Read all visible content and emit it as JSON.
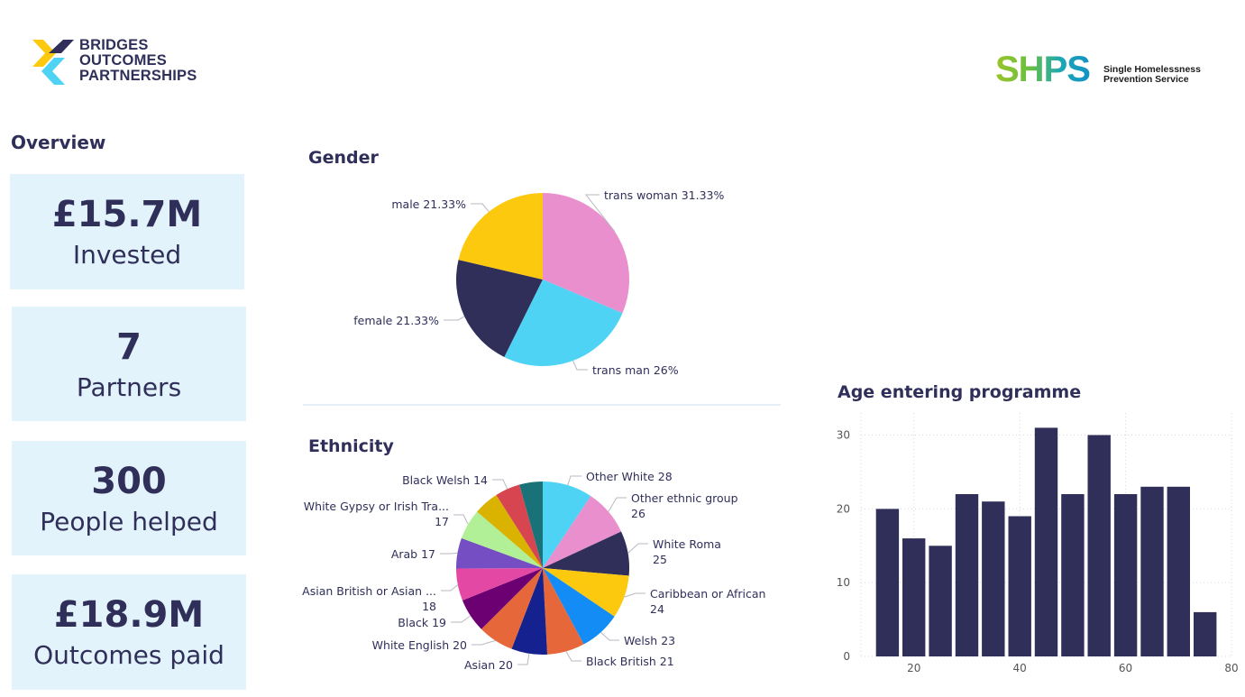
{
  "logos": {
    "bridges": [
      "BRIDGES",
      "OUTCOMES",
      "PARTNERSHIPS"
    ],
    "shps_mark": "SHPS",
    "shps_sub": [
      "Single Homelessness",
      "Prevention Service"
    ]
  },
  "overview": {
    "title": "Overview",
    "cards": [
      {
        "value": "£15.7M",
        "label": "Invested"
      },
      {
        "value": "7",
        "label": "Partners"
      },
      {
        "value": "300",
        "label": "People helped"
      },
      {
        "value": "£18.9M",
        "label": "Outcomes paid"
      }
    ]
  },
  "colors": {
    "navy": "#2f2f5a",
    "card_bg": "#e2f3fb"
  },
  "chart_data": [
    {
      "type": "pie",
      "title": "Gender",
      "slices": [
        {
          "label": "trans woman",
          "value": 31.33,
          "display": "trans woman 31.33%",
          "color": "#ea8fce"
        },
        {
          "label": "trans man",
          "value": 26,
          "display": "trans man 26%",
          "color": "#4fd3f5"
        },
        {
          "label": "female",
          "value": 21.33,
          "display": "female 21.33%",
          "color": "#2f2f5a"
        },
        {
          "label": "male",
          "value": 21.33,
          "display": "male 21.33%",
          "color": "#fdc90f"
        }
      ]
    },
    {
      "type": "pie",
      "title": "Ethnicity",
      "slices": [
        {
          "label": "Other White",
          "value": 28,
          "display": [
            "Other White 28"
          ],
          "color": "#4fd3f5"
        },
        {
          "label": "Other ethnic group",
          "value": 26,
          "display": [
            "Other ethnic group",
            "26"
          ],
          "color": "#ea8fce"
        },
        {
          "label": "White Roma",
          "value": 25,
          "display": [
            "White Roma",
            "25"
          ],
          "color": "#2f2f5a"
        },
        {
          "label": "Caribbean or African",
          "value": 24,
          "display": [
            "Caribbean or African",
            "24"
          ],
          "color": "#fdc90f"
        },
        {
          "label": "Welsh",
          "value": 23,
          "display": [
            "Welsh 23"
          ],
          "color": "#138cf6"
        },
        {
          "label": "Black British",
          "value": 21,
          "display": [
            "Black British 21"
          ],
          "color": "#e6683a"
        },
        {
          "label": "Asian",
          "value": 20,
          "display": [
            "Asian 20"
          ],
          "color": "#15218f"
        },
        {
          "label": "White English",
          "value": 20,
          "display": [
            "White English 20"
          ],
          "color": "#e6683a"
        },
        {
          "label": "Black",
          "value": 19,
          "display": [
            "Black 19"
          ],
          "color": "#6c0072"
        },
        {
          "label": "Asian British or Asian ...",
          "value": 18,
          "display": [
            "Asian British or Asian ...",
            "18"
          ],
          "color": "#e349a4"
        },
        {
          "label": "Arab",
          "value": 17,
          "display": [
            "Arab 17"
          ],
          "color": "#744ec2"
        },
        {
          "label": "White Gypsy or Irish Tra...",
          "value": 17,
          "display": [
            "White Gypsy or Irish Tra...",
            "17"
          ],
          "color": "#b1f096"
        },
        {
          "label": "",
          "value": 14,
          "display": [],
          "color": "#d9b300"
        },
        {
          "label": "Black Welsh",
          "value": 14,
          "display": [
            "Black Welsh 14"
          ],
          "color": "#d64550"
        },
        {
          "label": "",
          "value": 13,
          "display": [],
          "color": "#197278"
        }
      ]
    },
    {
      "type": "bar",
      "title": "Age entering programme",
      "x": [
        15,
        20,
        25,
        30,
        35,
        40,
        45,
        50,
        55,
        60,
        65,
        70,
        75
      ],
      "values": [
        20,
        16,
        15,
        22,
        21,
        19,
        31,
        22,
        30,
        22,
        23,
        23,
        6
      ],
      "xlim": [
        10,
        80
      ],
      "ylim": [
        0,
        33
      ],
      "xticks": [
        20,
        40,
        60,
        80
      ],
      "yticks": [
        0,
        10,
        20,
        30
      ],
      "bar_color": "#2f2f5a",
      "grid": true
    }
  ]
}
